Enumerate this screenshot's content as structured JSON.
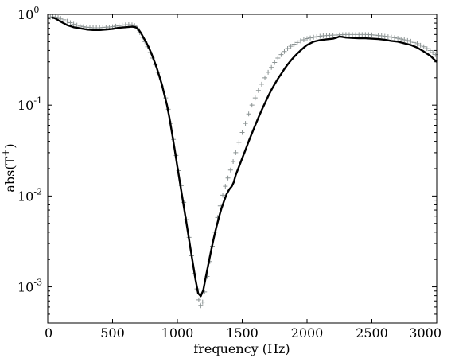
{
  "chart_data": {
    "type": "line",
    "xlabel": "frequency (Hz)",
    "ylabel": "abs(T",
    "ylabel_sup": "+",
    "ylabel_close": ")",
    "xlim": [
      0,
      3000
    ],
    "ylim": [
      0.0004,
      1
    ],
    "yscale": "log",
    "grid": false,
    "xticks": [
      0,
      500,
      1000,
      1500,
      2000,
      2500,
      3000
    ],
    "xtick_labels": [
      "0",
      "500",
      "1000",
      "1500",
      "2000",
      "2500",
      "3000"
    ],
    "yticks": [
      {
        "value": 1,
        "base": "10",
        "exp": "0"
      },
      {
        "value": 0.1,
        "base": "10",
        "exp": "-1"
      },
      {
        "value": 0.01,
        "base": "10",
        "exp": "-2"
      },
      {
        "value": 0.001,
        "base": "10",
        "exp": "-3"
      }
    ],
    "series": [
      {
        "style": "plus-markers",
        "color": "#8c9494",
        "points": [
          [
            20,
            0.93
          ],
          [
            40,
            0.94
          ],
          [
            60,
            0.93
          ],
          [
            80,
            0.92
          ],
          [
            100,
            0.9
          ],
          [
            125,
            0.87
          ],
          [
            150,
            0.84
          ],
          [
            175,
            0.81
          ],
          [
            200,
            0.78
          ],
          [
            225,
            0.76
          ],
          [
            250,
            0.74
          ],
          [
            275,
            0.73
          ],
          [
            300,
            0.72
          ],
          [
            325,
            0.715
          ],
          [
            350,
            0.71
          ],
          [
            375,
            0.71
          ],
          [
            400,
            0.71
          ],
          [
            425,
            0.715
          ],
          [
            450,
            0.72
          ],
          [
            475,
            0.725
          ],
          [
            500,
            0.73
          ],
          [
            525,
            0.74
          ],
          [
            550,
            0.75
          ],
          [
            575,
            0.76
          ],
          [
            600,
            0.765
          ],
          [
            625,
            0.77
          ],
          [
            650,
            0.765
          ],
          [
            670,
            0.75
          ],
          [
            690,
            0.7
          ],
          [
            710,
            0.63
          ],
          [
            730,
            0.56
          ],
          [
            750,
            0.5
          ],
          [
            770,
            0.44
          ],
          [
            790,
            0.38
          ],
          [
            810,
            0.33
          ],
          [
            830,
            0.28
          ],
          [
            850,
            0.23
          ],
          [
            870,
            0.19
          ],
          [
            890,
            0.155
          ],
          [
            910,
            0.12
          ],
          [
            930,
            0.09
          ],
          [
            950,
            0.063
          ],
          [
            970,
            0.042
          ],
          [
            990,
            0.028
          ],
          [
            1010,
            0.019
          ],
          [
            1030,
            0.013
          ],
          [
            1050,
            0.0085
          ],
          [
            1070,
            0.0055
          ],
          [
            1090,
            0.0035
          ],
          [
            1110,
            0.0022
          ],
          [
            1130,
            0.0014
          ],
          [
            1150,
            0.00095
          ],
          [
            1165,
            0.00072
          ],
          [
            1180,
            0.00062
          ],
          [
            1195,
            0.00068
          ],
          [
            1210,
            0.00088
          ],
          [
            1230,
            0.0013
          ],
          [
            1250,
            0.0019
          ],
          [
            1270,
            0.0028
          ],
          [
            1290,
            0.004
          ],
          [
            1310,
            0.0058
          ],
          [
            1330,
            0.0078
          ],
          [
            1350,
            0.0102
          ],
          [
            1370,
            0.0128
          ],
          [
            1390,
            0.0158
          ],
          [
            1410,
            0.0193
          ],
          [
            1430,
            0.024
          ],
          [
            1450,
            0.03
          ],
          [
            1475,
            0.039
          ],
          [
            1500,
            0.05
          ],
          [
            1525,
            0.063
          ],
          [
            1550,
            0.08
          ],
          [
            1575,
            0.1
          ],
          [
            1600,
            0.12
          ],
          [
            1625,
            0.145
          ],
          [
            1650,
            0.17
          ],
          [
            1675,
            0.2
          ],
          [
            1700,
            0.23
          ],
          [
            1725,
            0.26
          ],
          [
            1750,
            0.295
          ],
          [
            1775,
            0.33
          ],
          [
            1800,
            0.36
          ],
          [
            1825,
            0.39
          ],
          [
            1850,
            0.42
          ],
          [
            1875,
            0.445
          ],
          [
            1900,
            0.47
          ],
          [
            1925,
            0.49
          ],
          [
            1950,
            0.51
          ],
          [
            1975,
            0.525
          ],
          [
            2000,
            0.54
          ],
          [
            2050,
            0.56
          ],
          [
            2100,
            0.575
          ],
          [
            2150,
            0.585
          ],
          [
            2200,
            0.59
          ],
          [
            2250,
            0.595
          ],
          [
            2300,
            0.6
          ],
          [
            2350,
            0.6
          ],
          [
            2400,
            0.6
          ],
          [
            2450,
            0.6
          ],
          [
            2500,
            0.595
          ],
          [
            2550,
            0.585
          ],
          [
            2600,
            0.575
          ],
          [
            2650,
            0.56
          ],
          [
            2700,
            0.545
          ],
          [
            2750,
            0.525
          ],
          [
            2800,
            0.505
          ],
          [
            2850,
            0.475
          ],
          [
            2900,
            0.44
          ],
          [
            2950,
            0.4
          ],
          [
            2990,
            0.36
          ]
        ]
      },
      {
        "style": "solid-line",
        "color": "#000000",
        "points": [
          [
            30,
            0.93
          ],
          [
            60,
            0.9
          ],
          [
            100,
            0.83
          ],
          [
            150,
            0.76
          ],
          [
            200,
            0.72
          ],
          [
            250,
            0.7
          ],
          [
            300,
            0.68
          ],
          [
            350,
            0.67
          ],
          [
            400,
            0.67
          ],
          [
            450,
            0.68
          ],
          [
            500,
            0.69
          ],
          [
            550,
            0.71
          ],
          [
            600,
            0.72
          ],
          [
            650,
            0.73
          ],
          [
            680,
            0.72
          ],
          [
            700,
            0.68
          ],
          [
            720,
            0.62
          ],
          [
            740,
            0.55
          ],
          [
            760,
            0.49
          ],
          [
            780,
            0.43
          ],
          [
            800,
            0.37
          ],
          [
            820,
            0.31
          ],
          [
            840,
            0.26
          ],
          [
            860,
            0.21
          ],
          [
            880,
            0.17
          ],
          [
            900,
            0.13
          ],
          [
            920,
            0.1
          ],
          [
            940,
            0.071
          ],
          [
            960,
            0.048
          ],
          [
            980,
            0.032
          ],
          [
            1000,
            0.021
          ],
          [
            1020,
            0.014
          ],
          [
            1040,
            0.0093
          ],
          [
            1060,
            0.0062
          ],
          [
            1080,
            0.0041
          ],
          [
            1100,
            0.0027
          ],
          [
            1120,
            0.0018
          ],
          [
            1140,
            0.0012
          ],
          [
            1160,
            0.00085
          ],
          [
            1180,
            0.00079
          ],
          [
            1200,
            0.00092
          ],
          [
            1220,
            0.0013
          ],
          [
            1240,
            0.0018
          ],
          [
            1260,
            0.0025
          ],
          [
            1280,
            0.0034
          ],
          [
            1300,
            0.0045
          ],
          [
            1320,
            0.0058
          ],
          [
            1340,
            0.0073
          ],
          [
            1360,
            0.0088
          ],
          [
            1380,
            0.0105
          ],
          [
            1400,
            0.0118
          ],
          [
            1420,
            0.0128
          ],
          [
            1435,
            0.0142
          ],
          [
            1450,
            0.017
          ],
          [
            1475,
            0.021
          ],
          [
            1500,
            0.026
          ],
          [
            1525,
            0.032
          ],
          [
            1550,
            0.04
          ],
          [
            1575,
            0.049
          ],
          [
            1600,
            0.06
          ],
          [
            1625,
            0.073
          ],
          [
            1650,
            0.088
          ],
          [
            1675,
            0.105
          ],
          [
            1700,
            0.125
          ],
          [
            1725,
            0.147
          ],
          [
            1750,
            0.17
          ],
          [
            1775,
            0.195
          ],
          [
            1800,
            0.22
          ],
          [
            1825,
            0.25
          ],
          [
            1850,
            0.28
          ],
          [
            1875,
            0.31
          ],
          [
            1900,
            0.34
          ],
          [
            1925,
            0.37
          ],
          [
            1950,
            0.4
          ],
          [
            1975,
            0.43
          ],
          [
            2000,
            0.46
          ],
          [
            2025,
            0.48
          ],
          [
            2050,
            0.5
          ],
          [
            2075,
            0.51
          ],
          [
            2100,
            0.52
          ],
          [
            2150,
            0.53
          ],
          [
            2200,
            0.54
          ],
          [
            2230,
            0.555
          ],
          [
            2250,
            0.57
          ],
          [
            2270,
            0.565
          ],
          [
            2300,
            0.555
          ],
          [
            2350,
            0.55
          ],
          [
            2400,
            0.545
          ],
          [
            2450,
            0.545
          ],
          [
            2500,
            0.54
          ],
          [
            2550,
            0.535
          ],
          [
            2600,
            0.525
          ],
          [
            2650,
            0.51
          ],
          [
            2700,
            0.5
          ],
          [
            2750,
            0.48
          ],
          [
            2800,
            0.46
          ],
          [
            2850,
            0.43
          ],
          [
            2900,
            0.39
          ],
          [
            2950,
            0.35
          ],
          [
            3000,
            0.3
          ]
        ]
      }
    ]
  }
}
